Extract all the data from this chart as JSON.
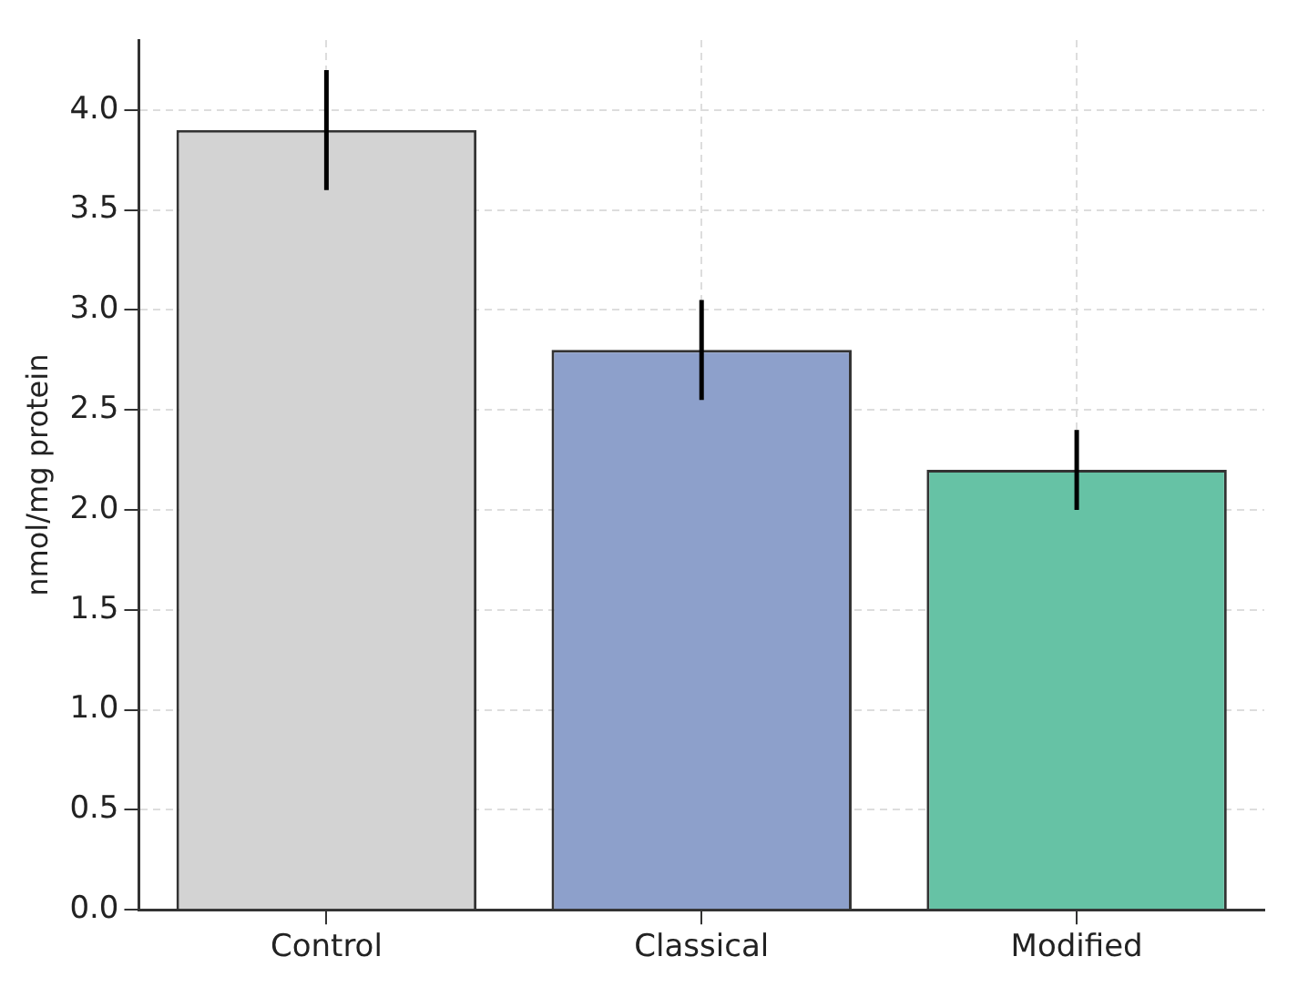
{
  "chart_data": {
    "type": "bar",
    "ylabel": "nmol/mg protein",
    "categories": [
      "Control",
      "Classical",
      "Modified"
    ],
    "values": [
      3.9,
      2.8,
      2.2
    ],
    "colors": [
      "#d3d3d3",
      "#8da0cb",
      "#66c2a5"
    ],
    "errors": [
      0.3,
      0.25,
      0.2
    ],
    "ylim": [
      0,
      4.35
    ],
    "yticks": [
      {
        "value": 0,
        "label": "0.0"
      },
      0.5,
      {
        "value": 1,
        "label": "1.0"
      },
      1.5,
      {
        "value": 2,
        "label": "2.0"
      },
      2.5,
      {
        "value": 3,
        "label": "3.0"
      },
      3.5,
      {
        "value": 4,
        "label": "4.0"
      }
    ],
    "grid": true
  }
}
